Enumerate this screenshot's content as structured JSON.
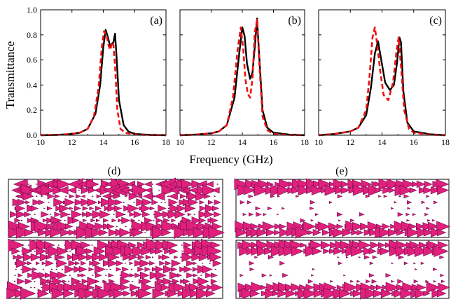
{
  "chart_data": [
    {
      "type": "line",
      "panel": "(a)",
      "xlim": [
        10,
        18
      ],
      "ylim": [
        0,
        1.0
      ],
      "xticks": [
        "10",
        "12",
        "14",
        "16",
        "18"
      ],
      "yticks": [
        "0.0",
        "0.2",
        "0.4",
        "0.6",
        "0.8",
        "1.0"
      ],
      "xlabel": "Frequency (GHz)",
      "ylabel": "Transmittance",
      "series": [
        {
          "name": "solid",
          "color": "#000000",
          "style": "solid",
          "x": [
            10,
            11,
            12,
            12.5,
            13,
            13.5,
            13.8,
            14.0,
            14.15,
            14.3,
            14.45,
            14.55,
            14.65,
            14.75,
            14.85,
            15.0,
            15.3,
            15.6,
            16,
            17,
            18
          ],
          "y": [
            0.0,
            0.003,
            0.01,
            0.02,
            0.05,
            0.17,
            0.4,
            0.7,
            0.84,
            0.78,
            0.7,
            0.73,
            0.74,
            0.81,
            0.62,
            0.28,
            0.08,
            0.03,
            0.01,
            0.003,
            0.0
          ]
        },
        {
          "name": "dashed",
          "color": "#ee1111",
          "style": "dashed",
          "x": [
            10,
            11,
            12,
            12.5,
            13,
            13.4,
            13.7,
            13.9,
            14.05,
            14.2,
            14.35,
            14.45,
            14.55,
            14.65,
            14.75,
            14.9,
            15.1,
            15.4,
            16,
            17,
            18
          ],
          "y": [
            0.0,
            0.003,
            0.01,
            0.02,
            0.05,
            0.15,
            0.38,
            0.7,
            0.83,
            0.8,
            0.71,
            0.68,
            0.74,
            0.72,
            0.55,
            0.2,
            0.05,
            0.02,
            0.005,
            0.002,
            0.0
          ]
        }
      ]
    },
    {
      "type": "line",
      "panel": "(b)",
      "xlim": [
        10,
        18
      ],
      "ylim": [
        0,
        1.0
      ],
      "xticks": [
        "10",
        "12",
        "14",
        "16",
        "18"
      ],
      "series": [
        {
          "name": "solid",
          "color": "#000000",
          "style": "solid",
          "x": [
            10,
            11,
            12,
            12.5,
            13,
            13.5,
            13.8,
            14.0,
            14.15,
            14.3,
            14.5,
            14.65,
            14.8,
            14.95,
            15.1,
            15.3,
            15.6,
            16,
            17,
            18
          ],
          "y": [
            0.0,
            0.005,
            0.015,
            0.03,
            0.08,
            0.3,
            0.65,
            0.86,
            0.79,
            0.57,
            0.45,
            0.5,
            0.7,
            0.93,
            0.6,
            0.2,
            0.06,
            0.02,
            0.005,
            0.0
          ]
        },
        {
          "name": "dashed",
          "color": "#ee1111",
          "style": "dashed",
          "x": [
            10,
            11,
            12,
            12.5,
            13,
            13.4,
            13.7,
            13.9,
            14.05,
            14.2,
            14.35,
            14.5,
            14.65,
            14.8,
            14.95,
            15.1,
            15.3,
            15.6,
            16,
            17,
            18
          ],
          "y": [
            0.0,
            0.005,
            0.015,
            0.03,
            0.08,
            0.3,
            0.68,
            0.86,
            0.7,
            0.45,
            0.33,
            0.3,
            0.45,
            0.82,
            0.92,
            0.55,
            0.15,
            0.04,
            0.01,
            0.003,
            0.0
          ]
        }
      ]
    },
    {
      "type": "line",
      "panel": "(c)",
      "xlim": [
        10,
        18
      ],
      "ylim": [
        0,
        1.0
      ],
      "xticks": [
        "10",
        "12",
        "14",
        "16",
        "18"
      ],
      "series": [
        {
          "name": "solid",
          "color": "#000000",
          "style": "solid",
          "x": [
            10,
            11,
            12,
            12.5,
            13,
            13.3,
            13.55,
            13.75,
            13.95,
            14.2,
            14.5,
            14.75,
            14.95,
            15.1,
            15.2,
            15.35,
            15.6,
            16,
            17,
            18
          ],
          "y": [
            0.0,
            0.01,
            0.03,
            0.06,
            0.16,
            0.38,
            0.65,
            0.75,
            0.6,
            0.42,
            0.36,
            0.4,
            0.58,
            0.78,
            0.74,
            0.35,
            0.1,
            0.03,
            0.008,
            0.0
          ]
        },
        {
          "name": "dashed",
          "color": "#ee1111",
          "style": "dashed",
          "x": [
            10,
            11,
            12,
            12.5,
            13,
            13.2,
            13.4,
            13.55,
            13.7,
            13.9,
            14.1,
            14.4,
            14.7,
            14.9,
            15.05,
            15.2,
            15.4,
            15.7,
            16,
            17,
            18
          ],
          "y": [
            0.0,
            0.01,
            0.03,
            0.06,
            0.2,
            0.45,
            0.78,
            0.86,
            0.72,
            0.5,
            0.32,
            0.28,
            0.42,
            0.66,
            0.78,
            0.55,
            0.2,
            0.05,
            0.02,
            0.005,
            0.0
          ]
        }
      ]
    }
  ],
  "field_maps": {
    "left_label": "(d)",
    "right_label": "(e)"
  },
  "colors": {
    "arrow_fill": "#e0207a",
    "arrow_edge": "#6a0a50"
  }
}
